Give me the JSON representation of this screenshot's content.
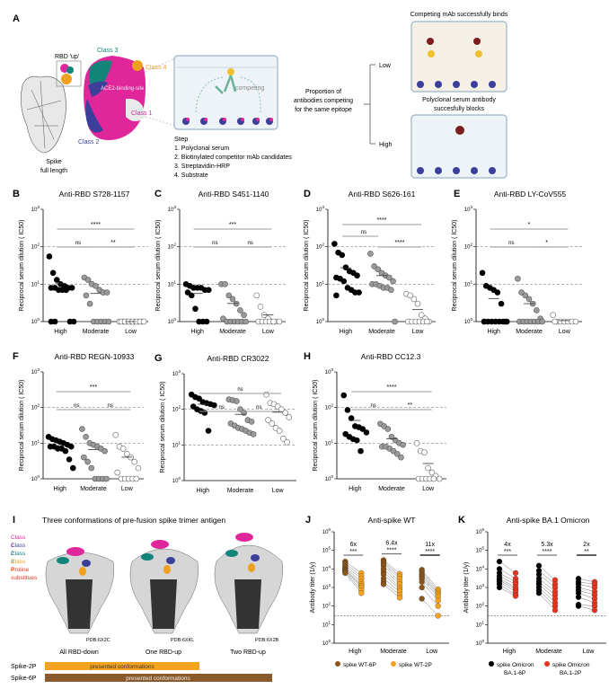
{
  "panel_a": {
    "letter": "A",
    "rbd_up": "RBD 'up'",
    "class1": "Class 1",
    "class2": "Class 2",
    "class3": "Class 3",
    "class4": "Class 4",
    "ace2": "ACE2-binding-site",
    "spike": "Spike",
    "spike2": "full length",
    "competing": "competing",
    "proportion": [
      "Proportion of",
      "antibodies competing",
      "for the same epitope"
    ],
    "low": "Low",
    "high": "High",
    "well_top_title": "Competing mAb successfully binds",
    "well_bottom_title": [
      "Polyclonal serum antibody",
      "succesfully blocks"
    ],
    "step_title": "Step",
    "steps": [
      "1. Polyclonal serum",
      "2. Biotinylated competitor mAb candidates",
      "3. Streptavidin-HRP",
      "4. Substrate"
    ],
    "colors": {
      "class1": "#e0269b",
      "class2": "#3b3f9a",
      "class3": "#13847a",
      "class4": "#f0a020"
    }
  },
  "chart_data": [
    {
      "letter": "B",
      "type": "scatter",
      "title": "Anti-RBD S728-1157",
      "ylabel": "Reciprocal serum dilution ( IC50)",
      "yscale": "log",
      "ylim": [
        1,
        1000
      ],
      "yticks": [
        "10^0",
        "10^1",
        "10^2",
        "10^3"
      ],
      "categories": [
        "High",
        "Moderate",
        "Low"
      ],
      "values": [
        [
          55,
          20,
          13,
          10,
          9,
          8,
          8,
          8,
          8,
          7,
          7,
          7,
          1,
          1,
          1,
          1
        ],
        [
          15,
          13,
          10,
          9,
          7,
          6,
          6,
          5,
          3,
          1,
          1,
          1,
          1,
          1
        ],
        [
          1,
          1,
          1,
          1,
          1,
          1,
          1,
          1,
          1,
          1,
          1,
          1,
          1,
          1
        ]
      ],
      "comparisons": [
        {
          "from": "High",
          "to": "Low",
          "label": "****"
        },
        {
          "from": "High",
          "to": "Moderate",
          "label": "ns"
        },
        {
          "from": "Moderate",
          "to": "Low",
          "label": "**"
        }
      ],
      "reference_lines": [
        10,
        100
      ]
    },
    {
      "letter": "C",
      "type": "scatter",
      "title": "Anti-RBD S451-1140",
      "ylabel": "Reciprocal serum dilution ( IC50)",
      "yscale": "log",
      "ylim": [
        1,
        1000
      ],
      "yticks": [
        "10^0",
        "10^1",
        "10^2",
        "10^3"
      ],
      "categories": [
        "High",
        "Moderate",
        "Low"
      ],
      "values": [
        [
          10,
          9,
          8,
          8,
          8,
          7,
          7,
          6,
          5,
          2.2,
          1,
          1,
          1
        ],
        [
          10,
          10,
          5,
          4,
          3,
          2,
          1.5,
          1.2,
          1,
          1,
          1,
          1,
          1,
          1
        ],
        [
          5,
          2.5,
          1.5,
          1.2,
          1,
          1,
          1,
          1,
          1,
          1,
          1,
          1
        ]
      ],
      "comparisons": [
        {
          "from": "High",
          "to": "Low",
          "label": "***"
        },
        {
          "from": "High",
          "to": "Moderate",
          "label": "ns"
        },
        {
          "from": "Moderate",
          "to": "Low",
          "label": "ns"
        }
      ],
      "reference_lines": [
        10,
        100
      ]
    },
    {
      "letter": "D",
      "type": "scatter",
      "title": "Anti-RBD S626-161",
      "ylabel": "Reciprocal serum dilution ( IC50)",
      "yscale": "log",
      "ylim": [
        1,
        1000
      ],
      "yticks": [
        "10^0",
        "10^1",
        "10^2",
        "10^3"
      ],
      "categories": [
        "High",
        "Moderate",
        "Low"
      ],
      "values": [
        [
          120,
          70,
          60,
          28,
          22,
          20,
          17,
          15,
          14,
          12,
          8,
          7,
          6,
          6,
          5
        ],
        [
          65,
          30,
          25,
          20,
          17,
          15,
          12,
          10,
          10,
          9,
          8,
          8,
          7,
          1
        ],
        [
          5.5,
          5,
          4,
          3,
          1.5,
          1.2,
          1,
          1,
          1,
          1,
          1,
          1,
          1
        ]
      ],
      "comparisons": [
        {
          "from": "High",
          "to": "Low",
          "label": "****"
        },
        {
          "from": "High",
          "to": "Moderate",
          "label": "ns"
        },
        {
          "from": "Moderate",
          "to": "Low",
          "label": "****"
        }
      ],
      "reference_lines": [
        10,
        100
      ]
    },
    {
      "letter": "E",
      "type": "scatter",
      "title": "Anti-RBD LY-CoV555",
      "ylabel": "Reciprocal serum dilution ( IC50)",
      "yscale": "log",
      "ylim": [
        1,
        1000
      ],
      "yticks": [
        "10^0",
        "10^1",
        "10^2",
        "10^3"
      ],
      "categories": [
        "High",
        "Moderate",
        "Low"
      ],
      "values": [
        [
          20,
          9,
          8,
          7,
          6,
          3,
          1,
          1,
          1,
          1,
          1,
          1,
          1,
          1,
          1
        ],
        [
          14,
          6,
          5,
          4,
          3,
          2,
          1.2,
          1,
          1,
          1,
          1,
          1,
          1,
          1
        ],
        [
          1.5,
          1,
          1,
          1,
          1,
          1,
          1,
          1
        ]
      ],
      "comparisons": [
        {
          "from": "High",
          "to": "Low",
          "label": "*"
        },
        {
          "from": "High",
          "to": "Moderate",
          "label": "ns"
        },
        {
          "from": "Moderate",
          "to": "Low",
          "label": "*"
        }
      ],
      "reference_lines": [
        10,
        100
      ]
    },
    {
      "letter": "F",
      "type": "scatter",
      "title": "Anti-RBD REGN-10933",
      "ylabel": "Reciprocal serum dilution ( IC50)",
      "yscale": "log",
      "ylim": [
        1,
        1000
      ],
      "yticks": [
        "10^0",
        "10^1",
        "10^2",
        "10^3"
      ],
      "categories": [
        "High",
        "Moderate",
        "Low"
      ],
      "values": [
        [
          15,
          13,
          12,
          11,
          10,
          9,
          8,
          8,
          8,
          7,
          7,
          6,
          3.5,
          2
        ],
        [
          25,
          15,
          10,
          9,
          8,
          7,
          6,
          4,
          3,
          2,
          1,
          1,
          1,
          1
        ],
        [
          17,
          8,
          7,
          5,
          4,
          3,
          2,
          1.5,
          1,
          1,
          1,
          1,
          1
        ]
      ],
      "comparisons": [
        {
          "from": "High",
          "to": "Low",
          "label": "***"
        },
        {
          "from": "High",
          "to": "Moderate",
          "label": "ns"
        },
        {
          "from": "Moderate",
          "to": "Low",
          "label": "ns"
        }
      ],
      "reference_lines": [
        10,
        100
      ]
    },
    {
      "letter": "G",
      "type": "scatter",
      "title": "Anti-RBD CR3022",
      "ylabel": "Reciprocal serum dilution ( IC50)",
      "yscale": "log",
      "ylim": [
        1,
        1000
      ],
      "yticks": [
        "10^0",
        "10^1",
        "10^2",
        "10^3"
      ],
      "categories": [
        "High",
        "Moderate",
        "Low"
      ],
      "values": [
        [
          260,
          220,
          200,
          160,
          150,
          140,
          130,
          120,
          100,
          90,
          80,
          25
        ],
        [
          190,
          180,
          170,
          100,
          80,
          50,
          45,
          40,
          35,
          30,
          28,
          25,
          22,
          20
        ],
        [
          260,
          150,
          140,
          120,
          100,
          80,
          60,
          50,
          40,
          30,
          25,
          15,
          12
        ]
      ],
      "comparisons": [
        {
          "from": "High",
          "to": "Low",
          "label": "ns"
        },
        {
          "from": "High",
          "to": "Moderate",
          "label": "ns"
        },
        {
          "from": "Moderate",
          "to": "Low",
          "label": "ns"
        }
      ],
      "reference_lines": [
        10,
        100
      ]
    },
    {
      "letter": "H",
      "type": "scatter",
      "title": "Anti-RBD CC12.3",
      "ylabel": "Reciprocal serum dilution ( IC50)",
      "yscale": "log",
      "ylim": [
        1,
        1000
      ],
      "yticks": [
        "10^0",
        "10^1",
        "10^2",
        "10^3"
      ],
      "categories": [
        "High",
        "Moderate",
        "Low"
      ],
      "values": [
        [
          220,
          85,
          50,
          30,
          28,
          25,
          20,
          18,
          15,
          13,
          12,
          6
        ],
        [
          35,
          30,
          25,
          15,
          12,
          10,
          9,
          8,
          8,
          7,
          6,
          5,
          4
        ],
        [
          10,
          6,
          5.5,
          2,
          1.5,
          1.2,
          1,
          1,
          1,
          1,
          1,
          1
        ]
      ],
      "comparisons": [
        {
          "from": "High",
          "to": "Low",
          "label": "****"
        },
        {
          "from": "High",
          "to": "Moderate",
          "label": "ns"
        },
        {
          "from": "Moderate",
          "to": "Low",
          "label": "**"
        }
      ],
      "reference_lines": [
        10,
        100
      ]
    },
    {
      "letter": "J",
      "type": "line",
      "title": "Anti-spike WT",
      "ylabel": "Antibody titer (1/y)",
      "yscale": "log",
      "ylim": [
        1,
        1000000
      ],
      "yticks": [
        "10^0",
        "10^1",
        "10^2",
        "10^3",
        "10^4",
        "10^5",
        "10^6"
      ],
      "categories": [
        "High",
        "Moderate",
        "Low"
      ],
      "reference_line": 30,
      "series": [
        {
          "name": "spike WT-6P",
          "color": "#8b5518",
          "values": [
            [
              25000,
              20000,
              15000,
              12000,
              10000,
              9000,
              8000,
              7000,
              6000
            ],
            [
              30000,
              25000,
              20000,
              15000,
              10000,
              7000,
              5000,
              3000,
              2000,
              1500
            ],
            [
              9000,
              7000,
              5000,
              4000,
              3000,
              2000,
              1000,
              250
            ]
          ]
        },
        {
          "name": "spike WT-2P",
          "color": "#f5a31e",
          "values": [
            [
              6000,
              4000,
              3000,
              2000,
              1500,
              1200,
              1000,
              700,
              500
            ],
            [
              5500,
              4000,
              3000,
              2000,
              1500,
              1000,
              800,
              600,
              400,
              280
            ],
            [
              800,
              600,
              500,
              400,
              300,
              200,
              100,
              30
            ]
          ]
        }
      ],
      "fold_changes": [
        "6x",
        "6.4x",
        "11x"
      ],
      "significance": [
        "***",
        "****",
        "****"
      ]
    },
    {
      "letter": "K",
      "type": "line",
      "title": "Anti-spike BA.1 Omicron",
      "ylabel": "Antibody titer (1/y)",
      "yscale": "log",
      "ylim": [
        1,
        1000000
      ],
      "yticks": [
        "10^0",
        "10^1",
        "10^2",
        "10^3",
        "10^4",
        "10^5",
        "10^6"
      ],
      "categories": [
        "High",
        "Moderate",
        "Low"
      ],
      "reference_line": 30,
      "series": [
        {
          "name": "spike Omicron BA.1-6P",
          "color": "#000000",
          "values": [
            [
              25000,
              10000,
              6000,
              4000,
              3000,
              2500,
              2000,
              1500,
              1000
            ],
            [
              15000,
              8000,
              5000,
              3000,
              2000,
              1500,
              1000,
              700,
              500
            ],
            [
              3000,
              2000,
              1500,
              1000,
              700,
              500,
              300,
              120,
              100
            ]
          ]
        },
        {
          "name": "spike Omicron BA.1-2P",
          "color": "#e8341c",
          "values": [
            [
              6000,
              3000,
              2000,
              1500,
              1000,
              800,
              600,
              400,
              350
            ],
            [
              2500,
              1500,
              1000,
              600,
              400,
              250,
              150,
              100,
              60
            ],
            [
              2000,
              1500,
              1000,
              600,
              400,
              250,
              150,
              100,
              60
            ]
          ]
        }
      ],
      "fold_changes": [
        "4x",
        "5.3x",
        "2x"
      ],
      "significance": [
        "***",
        "****",
        "**"
      ]
    }
  ],
  "panel_i": {
    "letter": "I",
    "title": "Three conformations of pre-fusion spike trimer antigen",
    "legend": [
      {
        "label": "Class 1",
        "color": "#e0269b"
      },
      {
        "label": "Class 2",
        "color": "#3b3f9a"
      },
      {
        "label": "Class 3",
        "color": "#13847a"
      },
      {
        "label": "Class 4",
        "color": "#f0a020"
      },
      {
        "label": "Proline substitues",
        "color": "#e8341c"
      }
    ],
    "structures": [
      {
        "name": "All RBD-down",
        "pdb": "PDB:6X2C"
      },
      {
        "name": "One RBD-up",
        "pdb": "PDB:6XKL"
      },
      {
        "name": "Two RBD-up",
        "pdb": "PDB:6X2B"
      }
    ],
    "bars": [
      {
        "label": "Spike-2P",
        "text": "presented conformations",
        "color": "#f5a31e"
      },
      {
        "label": "Spike-6P",
        "text": "presented conformations",
        "color": "#8b5a2b"
      }
    ]
  }
}
